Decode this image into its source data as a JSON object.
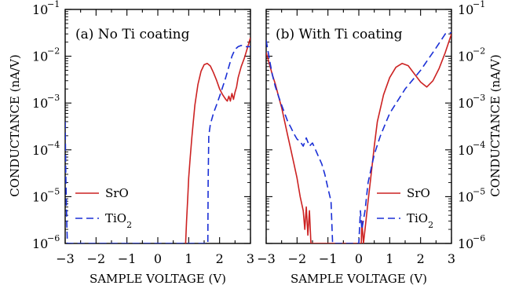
{
  "figure": {
    "ylabel": "CONDUCTANCE (nA/V)",
    "panels": [
      {
        "title": "(a) No Ti coating",
        "xlabel": "SAMPLE VOLTAGE (V)"
      },
      {
        "title": "(b) With Ti coating",
        "xlabel": "SAMPLE VOLTAGE (V)"
      }
    ],
    "x_ticks": [
      "−3",
      "−2",
      "−1",
      "0",
      "1",
      "2",
      "3"
    ],
    "y_ticks": [
      {
        "base": "10",
        "exp": "−6"
      },
      {
        "base": "10",
        "exp": "−5"
      },
      {
        "base": "10",
        "exp": "−4"
      },
      {
        "base": "10",
        "exp": "−3"
      },
      {
        "base": "10",
        "exp": "−2"
      },
      {
        "base": "10",
        "exp": "−1"
      }
    ],
    "legend": [
      {
        "label": "SrO",
        "sub": "",
        "color": "#cc2222",
        "dash": false
      },
      {
        "label": "TiO",
        "sub": "2",
        "color": "#1a2fd6",
        "dash": true
      }
    ]
  },
  "chart_data": [
    {
      "type": "line",
      "title": "(a) No Ti coating",
      "xlabel": "SAMPLE VOLTAGE (V)",
      "ylabel": "CONDUCTANCE (nA/V)",
      "xlim": [
        -3,
        3
      ],
      "ylim": [
        1e-06,
        0.1
      ],
      "yscale": "log",
      "grid": false,
      "legend_position": "bottom-left",
      "series": [
        {
          "name": "SrO",
          "color": "#cc2222",
          "style": "solid",
          "x": [
            0.9,
            0.93,
            0.97,
            1.0,
            1.05,
            1.1,
            1.15,
            1.2,
            1.3,
            1.4,
            1.5,
            1.6,
            1.7,
            1.8,
            1.9,
            2.0,
            2.1,
            2.2,
            2.25,
            2.3,
            2.35,
            2.4,
            2.45,
            2.5,
            2.55,
            2.6,
            2.7,
            2.8,
            2.9,
            3.0
          ],
          "y": [
            1e-06,
            3e-06,
            1e-05,
            2.5e-05,
            7e-05,
            0.00018,
            0.0004,
            0.0009,
            0.0025,
            0.0048,
            0.0066,
            0.007,
            0.0062,
            0.0045,
            0.0031,
            0.002,
            0.0015,
            0.0012,
            0.0011,
            0.0014,
            0.0011,
            0.0016,
            0.0012,
            0.0017,
            0.0022,
            0.0035,
            0.006,
            0.009,
            0.015,
            0.025
          ]
        },
        {
          "name": "TiO2",
          "color": "#1a2fd6",
          "style": "dashed",
          "x": [
            -3.0,
            -2.98,
            -2.95,
            -2.93,
            1.62,
            1.63,
            1.65,
            1.7,
            1.8,
            1.9,
            2.0,
            2.1,
            2.2,
            2.3,
            2.4,
            2.5,
            2.6,
            2.7,
            2.8,
            2.9,
            3.0
          ],
          "y": [
            0.0004,
            3e-05,
            3e-06,
            1e-06,
            1e-06,
            2e-05,
            0.0002,
            0.00035,
            0.0006,
            0.0009,
            0.0014,
            0.0022,
            0.0035,
            0.006,
            0.01,
            0.014,
            0.016,
            0.017,
            0.016,
            0.016,
            0.016
          ]
        }
      ]
    },
    {
      "type": "line",
      "title": "(b) With Ti coating",
      "xlabel": "SAMPLE VOLTAGE (V)",
      "ylabel": "CONDUCTANCE (nA/V)",
      "xlim": [
        -3,
        3
      ],
      "ylim": [
        1e-06,
        0.1
      ],
      "yscale": "log",
      "grid": false,
      "legend_position": "bottom-right",
      "series": [
        {
          "name": "SrO",
          "color": "#cc2222",
          "style": "solid",
          "x": [
            -3.0,
            -2.9,
            -2.8,
            -2.7,
            -2.6,
            -2.5,
            -2.4,
            -2.3,
            -2.2,
            -2.1,
            -2.0,
            -1.9,
            -1.8,
            -1.75,
            -1.7,
            -1.65,
            -1.6,
            -1.55,
            0.08,
            0.1,
            0.15,
            0.2,
            0.3,
            0.4,
            0.5,
            0.6,
            0.8,
            1.0,
            1.2,
            1.4,
            1.6,
            1.8,
            2.0,
            2.2,
            2.4,
            2.6,
            2.8,
            3.0
          ],
          "y": [
            0.012,
            0.007,
            0.004,
            0.0025,
            0.0014,
            0.0008,
            0.0004,
            0.0002,
            0.0001,
            5e-05,
            2.5e-05,
            1e-05,
            5e-06,
            2e-06,
            6e-06,
            1.5e-06,
            5e-06,
            1e-06,
            1e-06,
            3e-06,
            1e-06,
            2e-06,
            8e-06,
            3e-05,
            0.00012,
            0.0004,
            0.0015,
            0.0035,
            0.0058,
            0.007,
            0.0063,
            0.0042,
            0.0028,
            0.0022,
            0.003,
            0.0055,
            0.012,
            0.03
          ]
        },
        {
          "name": "TiO2",
          "color": "#1a2fd6",
          "style": "dashed",
          "x": [
            -3.0,
            -2.9,
            -2.8,
            -2.7,
            -2.6,
            -2.5,
            -2.4,
            -2.3,
            -2.2,
            -2.1,
            -2.0,
            -1.9,
            -1.8,
            -1.7,
            -1.6,
            -1.5,
            -1.4,
            -1.3,
            -1.2,
            -1.1,
            -1.0,
            -0.9,
            -0.85,
            0.0,
            0.05,
            0.1,
            0.2,
            0.3,
            0.4,
            0.5,
            0.7,
            1.0,
            1.5,
            2.0,
            2.5,
            2.8,
            3.0
          ],
          "y": [
            0.022,
            0.009,
            0.004,
            0.0022,
            0.0014,
            0.0009,
            0.0006,
            0.0004,
            0.0003,
            0.00022,
            0.00017,
            0.00015,
            0.00012,
            0.00018,
            0.00012,
            0.00014,
            0.0001,
            7e-05,
            5e-05,
            3e-05,
            1.5e-05,
            8e-06,
            1e-06,
            1e-06,
            5e-06,
            2e-06,
            5e-06,
            2e-05,
            4e-05,
            8e-05,
            0.0002,
            0.0006,
            0.002,
            0.005,
            0.015,
            0.03,
            0.032
          ]
        }
      ]
    }
  ]
}
